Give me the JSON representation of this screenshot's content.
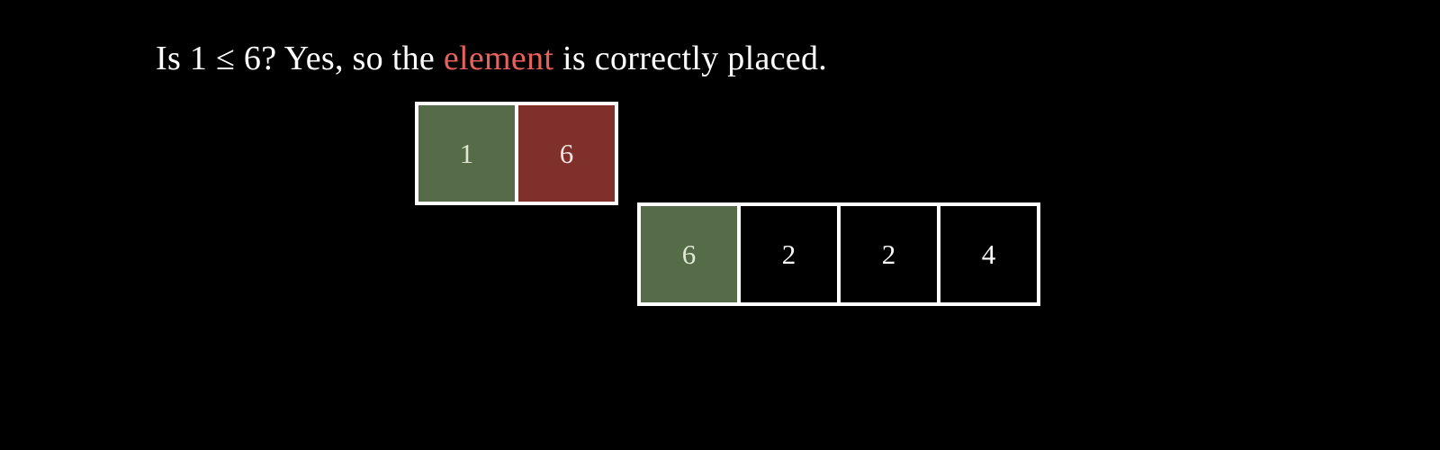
{
  "caption": {
    "before": "Is 1 ≤ 6? Yes, so the ",
    "highlight": "element",
    "after": " is correctly placed.",
    "highlight_color": "#e8625c"
  },
  "top_row": [
    {
      "value": "1",
      "state": "green"
    },
    {
      "value": "6",
      "state": "red"
    }
  ],
  "bottom_row": [
    {
      "value": "6",
      "state": "green"
    },
    {
      "value": "2",
      "state": "plain"
    },
    {
      "value": "2",
      "state": "plain"
    },
    {
      "value": "4",
      "state": "plain"
    }
  ],
  "colors": {
    "background": "#000000",
    "green": "#566b48",
    "red": "#80302b",
    "border": "#ffffff"
  }
}
